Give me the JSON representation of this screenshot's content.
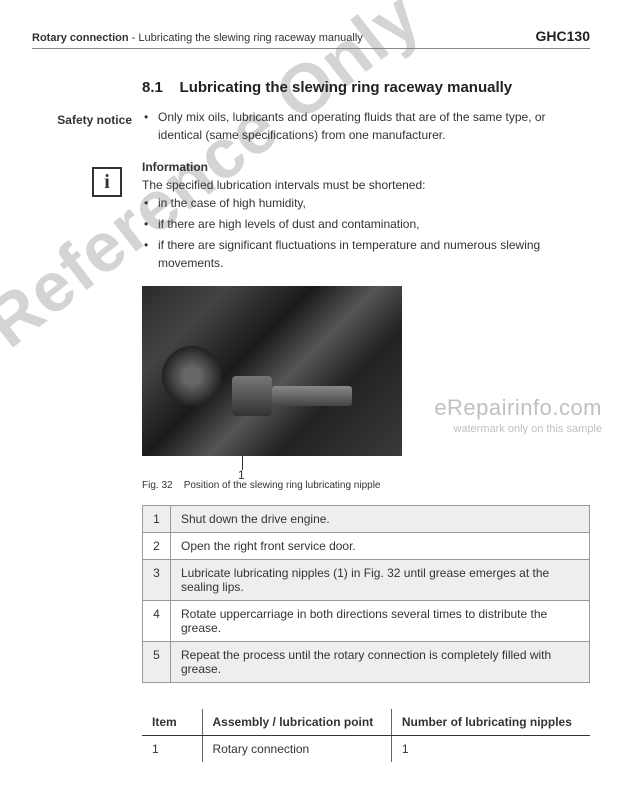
{
  "header": {
    "section": "Rotary connection",
    "subsection": "Lubricating the slewing ring raceway manually",
    "model": "GHC130"
  },
  "heading": {
    "number": "8.1",
    "title": "Lubricating the slewing ring raceway manually"
  },
  "safety": {
    "label": "Safety notice",
    "items": [
      "Only mix oils, lubricants and operating fluids that are of the same type, or identical (same specifications) from one manufacturer."
    ]
  },
  "info": {
    "label": "Information",
    "lead": "The specified lubrication intervals must be shortened:",
    "items": [
      "in the case of high humidity,",
      "if there are high levels of dust and contamination,",
      "if there are significant fluctuations in temperature and numerous slewing movements."
    ]
  },
  "figure": {
    "callout_number": "1",
    "caption_prefix": "Fig. 32",
    "caption_text": "Position of the slewing ring lubricating nipple"
  },
  "steps": [
    {
      "n": "1",
      "text": "Shut down the drive engine."
    },
    {
      "n": "2",
      "text": "Open the right front service door."
    },
    {
      "n": "3",
      "text": "Lubricate lubricating nipples (1) in Fig. 32 until grease emerges at the sealing lips."
    },
    {
      "n": "4",
      "text": "Rotate uppercarriage in both directions several times to distribute the grease."
    },
    {
      "n": "5",
      "text": "Repeat the process until the rotary connection is completely filled with grease."
    }
  ],
  "lube_table": {
    "headers": {
      "item": "Item",
      "assembly": "Assembly / lubrication point",
      "nipples": "Number of lubricating nipples"
    },
    "rows": [
      {
        "item": "1",
        "assembly": "Rotary connection",
        "nipples": "1"
      }
    ]
  },
  "watermarks": {
    "reference": "Reference Only",
    "site": "eRepairinfo.com",
    "site_sub": "watermark only on this sample"
  },
  "colors": {
    "text": "#333333",
    "border": "#999999",
    "shade": "#eeeeee",
    "heading": "#222222",
    "watermark": "rgba(120,120,120,0.32)"
  }
}
